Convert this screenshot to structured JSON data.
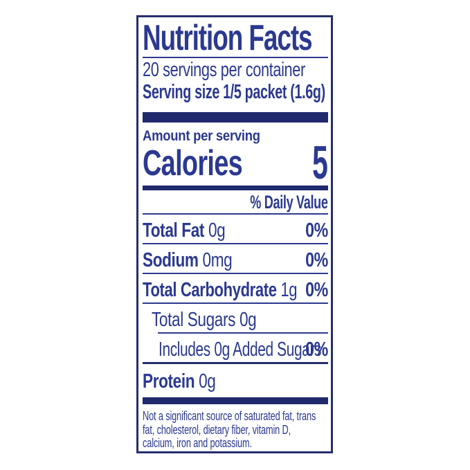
{
  "colors": {
    "text_blue": "#2b3990",
    "bar_navy": "#20296b",
    "border_navy": "#252e6e",
    "background": "#ffffff"
  },
  "label": {
    "title": "Nutrition Facts",
    "servings_per_container": "20 servings per container",
    "serving_size": "Serving size 1/5 packet (1.6g)",
    "amount_per_serving": "Amount per serving",
    "calories_label": "Calories",
    "calories_value": "5",
    "daily_value_header": "% Daily Value",
    "rows": [
      {
        "name": "Total Fat",
        "amount": " 0g",
        "daily_value": "0%"
      },
      {
        "name": "Sodium",
        "amount": " 0mg",
        "daily_value": "0%"
      },
      {
        "name": "Total Carbohydrate",
        "amount": " 1g",
        "daily_value": "0%"
      },
      {
        "name": "",
        "amount": "Total Sugars 0g",
        "daily_value": ""
      },
      {
        "name": "",
        "amount": "Includes 0g Added Sugars",
        "daily_value": "0%"
      },
      {
        "name": "Protein",
        "amount": " 0g",
        "daily_value": ""
      }
    ],
    "footnote": "Not a significant source of saturated fat, trans fat, cholesterol, dietary fiber, vitamin D, calcium, iron and potassium."
  }
}
